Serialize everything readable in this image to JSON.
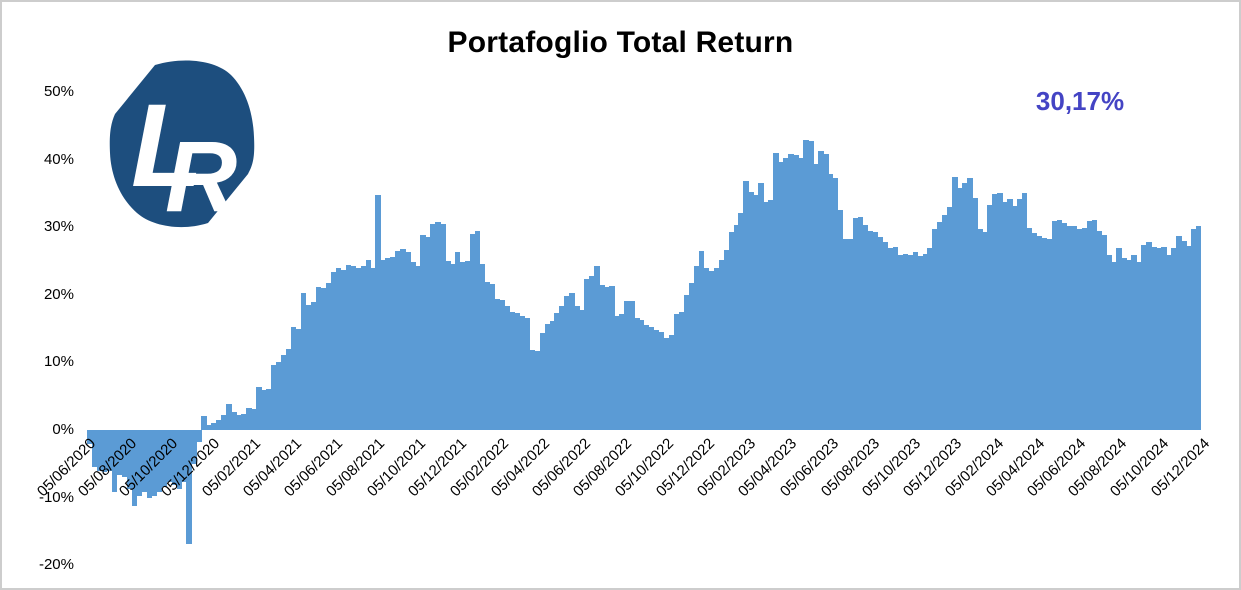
{
  "logo": {
    "letter_l": "L",
    "letter_r": "R",
    "bg_color": "#1d4e7e",
    "text_color": "#ffffff"
  },
  "chart_data": {
    "type": "bar",
    "title": "Portafoglio Total Return",
    "last_value_label": "30,17%",
    "last_value": 30.17,
    "bar_color": "#5b9bd5",
    "last_label_color": "#4444c4",
    "ylim": [
      -20,
      50
    ],
    "grid": false,
    "legend": false,
    "y_tick_labels": [
      "50%",
      "40%",
      "30%",
      "20%",
      "10%",
      "0%",
      "-10%",
      "-20%"
    ],
    "x_tick_labels": [
      "05/06/2020",
      "05/08/2020",
      "05/10/2020",
      "05/12/2020",
      "05/02/2021",
      "05/04/2021",
      "05/06/2021",
      "05/08/2021",
      "05/10/2021",
      "05/12/2021",
      "05/02/2022",
      "05/04/2022",
      "05/06/2022",
      "05/08/2022",
      "05/10/2022",
      "05/12/2022",
      "05/02/2023",
      "05/04/2023",
      "05/06/2023",
      "05/08/2023",
      "05/10/2023",
      "05/12/2023",
      "05/02/2024",
      "05/04/2024",
      "05/06/2024",
      "05/08/2024",
      "05/10/2024",
      "05/12/2024"
    ],
    "x_sampling_note": "daily return series shown as dense bars; values below sampled approx. weekly from 05/06/2020 to 05/12/2024, percent total return",
    "values": [
      -2.0,
      -5.5,
      -6.0,
      -6.2,
      -6.0,
      -9.2,
      -6.7,
      -7.0,
      -8.7,
      -11.2,
      -9.7,
      -9.2,
      -10.0,
      -9.7,
      -9.2,
      -8.5,
      -7.7,
      -8.2,
      -8.7,
      -7.7,
      -16.8,
      -5.0,
      -1.8,
      2.0,
      0.7,
      1.0,
      1.5,
      2.2,
      3.9,
      2.7,
      2.2,
      2.4,
      3.2,
      3.1,
      6.4,
      5.9,
      6.0,
      9.6,
      10.1,
      11.1,
      12.0,
      15.3,
      15.0,
      20.2,
      18.5,
      18.9,
      21.2,
      21.0,
      21.7,
      23.4,
      23.9,
      23.6,
      24.4,
      24.2,
      23.9,
      24.2,
      25.2,
      24.0,
      34.8,
      25.2,
      25.4,
      25.6,
      26.5,
      26.8,
      26.3,
      24.8,
      24.2,
      28.8,
      28.5,
      30.5,
      30.7,
      30.5,
      25.0,
      24.6,
      26.4,
      24.9,
      25.0,
      29.0,
      29.5,
      24.6,
      21.9,
      21.6,
      19.4,
      19.2,
      18.4,
      17.5,
      17.3,
      16.9,
      16.6,
      11.9,
      11.7,
      14.4,
      15.7,
      16.1,
      17.3,
      18.3,
      19.8,
      20.2,
      18.4,
      17.7,
      22.4,
      22.8,
      24.3,
      21.4,
      21.1,
      21.3,
      16.9,
      17.2,
      19.1,
      19.1,
      16.5,
      16.2,
      15.5,
      15.3,
      14.8,
      14.5,
      13.6,
      14.1,
      17.2,
      17.4,
      19.9,
      21.8,
      24.3,
      26.5,
      24.0,
      23.5,
      23.9,
      25.1,
      26.6,
      29.3,
      30.3,
      32.1,
      36.8,
      35.2,
      34.8,
      36.5,
      33.8,
      34.0,
      41.0,
      39.7,
      40.2,
      40.9,
      40.7,
      40.2,
      42.9,
      42.7,
      39.4,
      41.2,
      40.9,
      37.8,
      37.3,
      32.6,
      28.3,
      28.3,
      31.3,
      31.5,
      30.3,
      29.5,
      29.3,
      28.5,
      27.8,
      26.9,
      27.1,
      25.9,
      26.1,
      25.9,
      26.4,
      25.7,
      26.1,
      26.9,
      29.7,
      30.8,
      31.8,
      33.0,
      37.5,
      35.8,
      36.6,
      37.3,
      34.3,
      29.8,
      29.3,
      33.3,
      34.9,
      35.0,
      33.8,
      34.1,
      33.2,
      34.1,
      35.0,
      29.9,
      29.2,
      28.7,
      28.4,
      28.2,
      30.9,
      31.1,
      30.6,
      30.2,
      30.2,
      29.7,
      29.9,
      30.9,
      31.1,
      29.4,
      28.9,
      25.9,
      24.9,
      26.9,
      25.4,
      25.2,
      25.9,
      24.9,
      27.4,
      27.8,
      27.1,
      26.9,
      27.1,
      25.9,
      26.9,
      28.7,
      27.9,
      27.2,
      29.7,
      30.17
    ]
  }
}
